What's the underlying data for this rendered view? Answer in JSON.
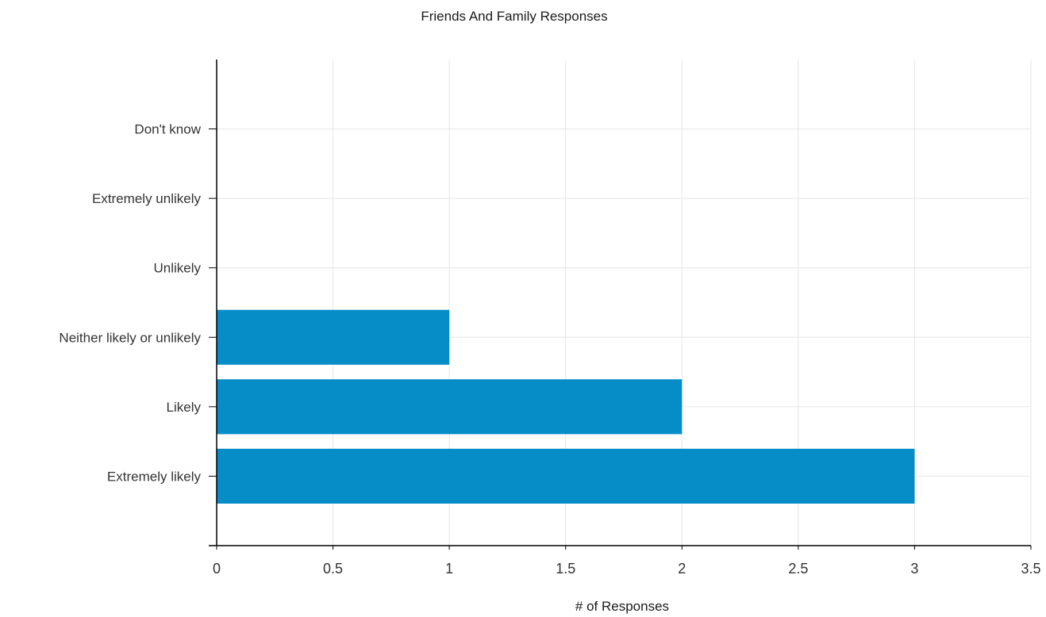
{
  "chart_data": {
    "type": "bar",
    "orientation": "horizontal",
    "title": "Friends And Family Responses",
    "xlabel": "# of Responses",
    "ylabel": "",
    "categories": [
      "Don't know",
      "Extremely unlikely",
      "Unlikely",
      "Neither likely or unlikely",
      "Likely",
      "Extremely likely"
    ],
    "values": [
      0,
      0,
      0,
      1,
      2,
      3
    ],
    "xlim": [
      0,
      3.5
    ],
    "xticks": [
      "0",
      "0.5",
      "1",
      "1.5",
      "2",
      "2.5",
      "3",
      "3.5"
    ],
    "grid": true,
    "legend": "none",
    "colors": {
      "bar": "#068dc8",
      "grid": "#e6e6e6",
      "axis": "#000000",
      "text": "#333333"
    }
  }
}
